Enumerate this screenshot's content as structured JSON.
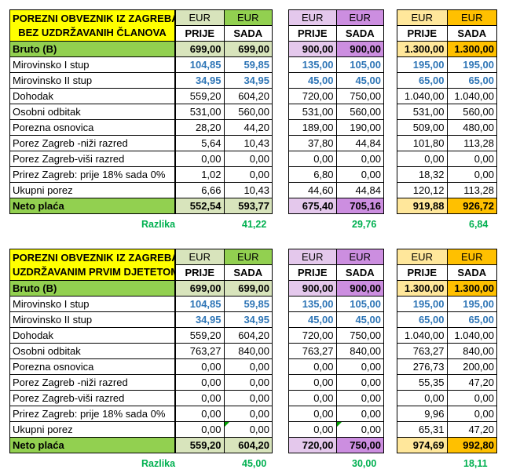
{
  "blocks": [
    {
      "title_lines": [
        "POREZNI OBVEZNIK IZ ZAGREBA",
        "BEZ UZDRŽAVANIH ČLANOVA"
      ],
      "currency": "EUR",
      "col_prije": "PRIJE",
      "col_sada": "SADA",
      "rows": [
        {
          "label": "Bruto (B)",
          "v": [
            "699,00",
            "699,00",
            "900,00",
            "900,00",
            "1.300,00",
            "1.300,00"
          ]
        },
        {
          "label": "Mirovinsko I stup",
          "v": [
            "104,85",
            "59,85",
            "135,00",
            "105,00",
            "195,00",
            "195,00"
          ]
        },
        {
          "label": "Mirovinsko II stup",
          "v": [
            "34,95",
            "34,95",
            "45,00",
            "45,00",
            "65,00",
            "65,00"
          ]
        },
        {
          "label": "Dohodak",
          "v": [
            "559,20",
            "604,20",
            "720,00",
            "750,00",
            "1.040,00",
            "1.040,00"
          ]
        },
        {
          "label": "Osobni odbitak",
          "v": [
            "531,00",
            "560,00",
            "531,00",
            "560,00",
            "531,00",
            "560,00"
          ]
        },
        {
          "label": "Porezna osnovica",
          "v": [
            "28,20",
            "44,20",
            "189,00",
            "190,00",
            "509,00",
            "480,00"
          ]
        },
        {
          "label": "Porez Zagreb -niži razred",
          "v": [
            "5,64",
            "10,43",
            "37,80",
            "44,84",
            "101,80",
            "113,28"
          ]
        },
        {
          "label": "Porez Zagreb-viši razred",
          "v": [
            "0,00",
            "0,00",
            "0,00",
            "0,00",
            "0,00",
            "0,00"
          ]
        },
        {
          "label": "Prirez Zagreb: prije 18% sada 0%",
          "v": [
            "1,02",
            "0,00",
            "6,80",
            "0,00",
            "18,32",
            "0,00"
          ]
        },
        {
          "label": "Ukupni porez",
          "v": [
            "6,66",
            "10,43",
            "44,60",
            "44,84",
            "120,12",
            "113,28"
          ]
        },
        {
          "label": "Neto plaća",
          "v": [
            "552,54",
            "593,77",
            "675,40",
            "705,16",
            "919,88",
            "926,72"
          ]
        }
      ],
      "razlika_label": "Razlika",
      "razlika": [
        "41,22",
        "29,76",
        "6,84"
      ]
    },
    {
      "title_lines": [
        "POREZNI OBVEZNIK IZ ZAGREBA S",
        "UZDRŽAVANIM PRVIM DJETETOM"
      ],
      "currency": "EUR",
      "col_prije": "PRIJE",
      "col_sada": "SADA",
      "rows": [
        {
          "label": "Bruto (B)",
          "v": [
            "699,00",
            "699,00",
            "900,00",
            "900,00",
            "1.300,00",
            "1.300,00"
          ]
        },
        {
          "label": "Mirovinsko I stup",
          "v": [
            "104,85",
            "59,85",
            "135,00",
            "105,00",
            "195,00",
            "195,00"
          ]
        },
        {
          "label": "Mirovinsko II stup",
          "v": [
            "34,95",
            "34,95",
            "45,00",
            "45,00",
            "65,00",
            "65,00"
          ]
        },
        {
          "label": "Dohodak",
          "v": [
            "559,20",
            "604,20",
            "720,00",
            "750,00",
            "1.040,00",
            "1.040,00"
          ]
        },
        {
          "label": "Osobni odbitak",
          "v": [
            "763,27",
            "840,00",
            "763,27",
            "840,00",
            "763,27",
            "840,00"
          ]
        },
        {
          "label": "Porezna osnovica",
          "v": [
            "0,00",
            "0,00",
            "0,00",
            "0,00",
            "276,73",
            "200,00"
          ]
        },
        {
          "label": "Porez Zagreb -niži razred",
          "v": [
            "0,00",
            "0,00",
            "0,00",
            "0,00",
            "55,35",
            "47,20"
          ]
        },
        {
          "label": "Porez Zagreb-viši razred",
          "v": [
            "0,00",
            "0,00",
            "0,00",
            "0,00",
            "0,00",
            "0,00"
          ]
        },
        {
          "label": "Prirez Zagreb: prije 18% sada 0%",
          "v": [
            "0,00",
            "0,00",
            "0,00",
            "0,00",
            "9,96",
            "0,00"
          ]
        },
        {
          "label": "Ukupni porez",
          "v": [
            "0,00",
            "0,00",
            "0,00",
            "0,00",
            "65,31",
            "47,20"
          ]
        },
        {
          "label": "Neto plaća",
          "v": [
            "559,20",
            "604,20",
            "720,00",
            "750,00",
            "974,69",
            "992,80"
          ]
        }
      ],
      "razlika_label": "Razlika",
      "razlika": [
        "45,00",
        "30,00",
        "18,11"
      ]
    }
  ]
}
